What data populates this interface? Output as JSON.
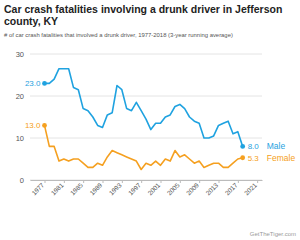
{
  "chart_data": {
    "type": "line",
    "title": "Car crash fatalities involving a drunk driver in Jefferson county, KY",
    "subtitle": "# of car crash fatalities that involved a drunk driver, 1977-2018 (3-year running average)",
    "annotations": [
      "GetTheTiger.com"
    ],
    "x": [
      1977,
      1978,
      1979,
      1980,
      1981,
      1982,
      1983,
      1984,
      1985,
      1986,
      1987,
      1988,
      1989,
      1990,
      1991,
      1992,
      1993,
      1994,
      1995,
      1996,
      1997,
      1998,
      1999,
      2000,
      2001,
      2002,
      2003,
      2004,
      2005,
      2006,
      2007,
      2008,
      2009,
      2010,
      2011,
      2012,
      2013,
      2014,
      2015,
      2016,
      2017,
      2018
    ],
    "xlim": [
      1974,
      2022
    ],
    "xticks": [
      1977,
      1981,
      1985,
      1989,
      1993,
      1997,
      2001,
      2005,
      2009,
      2013,
      2017,
      2021
    ],
    "ylim": [
      0,
      30
    ],
    "yticks": [
      0,
      10,
      20,
      30
    ],
    "grid": true,
    "data_labels": true,
    "series": [
      {
        "name": "Male",
        "color": "#1fa2e0",
        "values": [
          23.0,
          23,
          24,
          26.5,
          26.5,
          26.5,
          22,
          21.5,
          17,
          16.5,
          15,
          13,
          12.5,
          15.5,
          16,
          22.5,
          21.5,
          17,
          16.5,
          18.5,
          16.5,
          14.5,
          12,
          13.5,
          13.5,
          15,
          15.5,
          17.5,
          18,
          17,
          15,
          14,
          13.5,
          10,
          10,
          10.5,
          13,
          13.5,
          14,
          11,
          11.5,
          8.0
        ],
        "value_labels": [
          "23.0",
          null,
          null,
          null,
          null,
          null,
          null,
          null,
          null,
          null,
          null,
          null,
          null,
          null,
          null,
          null,
          null,
          null,
          null,
          null,
          null,
          null,
          null,
          null,
          null,
          null,
          null,
          null,
          null,
          null,
          null,
          null,
          null,
          null,
          null,
          null,
          null,
          null,
          null,
          null,
          null,
          "8.0"
        ]
      },
      {
        "name": "Female",
        "color": "#f5a020",
        "values": [
          13.0,
          8,
          8,
          4.5,
          5,
          4.5,
          5,
          5,
          4,
          3,
          3,
          4,
          3.5,
          5.5,
          7,
          6.5,
          6,
          5.5,
          5,
          4.5,
          2.5,
          4,
          3.5,
          4.5,
          3.5,
          5,
          4.5,
          7,
          5.5,
          6,
          5,
          4,
          4.5,
          3,
          3.5,
          4,
          4,
          3,
          3,
          4,
          5,
          5.3
        ],
        "value_labels": [
          "13.0",
          null,
          null,
          null,
          null,
          null,
          null,
          null,
          null,
          null,
          null,
          null,
          null,
          null,
          null,
          null,
          null,
          null,
          null,
          null,
          null,
          null,
          null,
          null,
          null,
          null,
          null,
          null,
          null,
          null,
          null,
          null,
          null,
          null,
          null,
          null,
          null,
          null,
          null,
          null,
          null,
          "5.3"
        ]
      }
    ]
  }
}
